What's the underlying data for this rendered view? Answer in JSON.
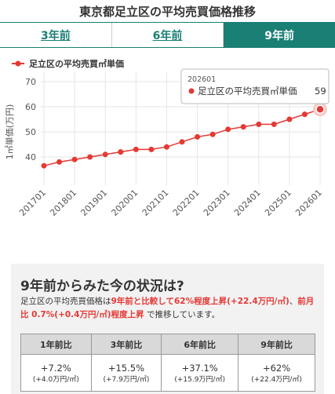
{
  "page_title": "東京都足立区の平均売買価格推移",
  "tabs": [
    {
      "label": "3年前",
      "active": false
    },
    {
      "label": "6年前",
      "active": false
    },
    {
      "label": "9年前",
      "active": true
    }
  ],
  "chart_data": {
    "type": "line",
    "legend": "足立区の平均売買㎡単価",
    "legend_position": "top-left",
    "ylabel": "1㎡単価(万円)",
    "ylim": [
      30,
      70
    ],
    "yticks": [
      40,
      50,
      60,
      70
    ],
    "grid": true,
    "color": "#e53935",
    "x": [
      "201701",
      "201707",
      "201801",
      "201807",
      "201901",
      "201907",
      "202001",
      "202007",
      "202101",
      "202107",
      "202201",
      "202207",
      "202301",
      "202307",
      "202401",
      "202407",
      "202501",
      "202507",
      "202601"
    ],
    "xtick_labels": [
      "201701",
      "201801",
      "201901",
      "202001",
      "202101",
      "202201",
      "202301",
      "202401",
      "202501",
      "202601"
    ],
    "series": [
      {
        "name": "足立区の平均売買㎡単価",
        "values": [
          36.5,
          38,
          39,
          40,
          41,
          42,
          43,
          43,
          44,
          46,
          48,
          49,
          51,
          52,
          53,
          53,
          55,
          57,
          59
        ]
      }
    ],
    "tooltip": {
      "x": "202601",
      "series": "足立区の平均売買㎡単価",
      "value": "59"
    }
  },
  "summary": {
    "heading": "9年前からみた今の状況は?",
    "desc_1": "足立区の平均売買価格は",
    "desc_hl_1": "9年前と比較して62%程度上昇(+22.4万円/㎡)",
    "desc_2": "、",
    "desc_hl_2": "前月比 0.7%(+0.4万円/㎡)程度上昇",
    "desc_3": " で推移しています。",
    "table": {
      "headers": [
        "1年前比",
        "3年前比",
        "6年前比",
        "9年前比"
      ],
      "rows": [
        {
          "main": "+7.2%",
          "sub": "(+4.0万円/㎡)"
        },
        {
          "main": "+15.5%",
          "sub": "(+7.9万円/㎡)"
        },
        {
          "main": "+37.1%",
          "sub": "(+15.9万円/㎡)"
        },
        {
          "main": "+62%",
          "sub": "(+22.4万円/㎡)"
        }
      ]
    }
  }
}
